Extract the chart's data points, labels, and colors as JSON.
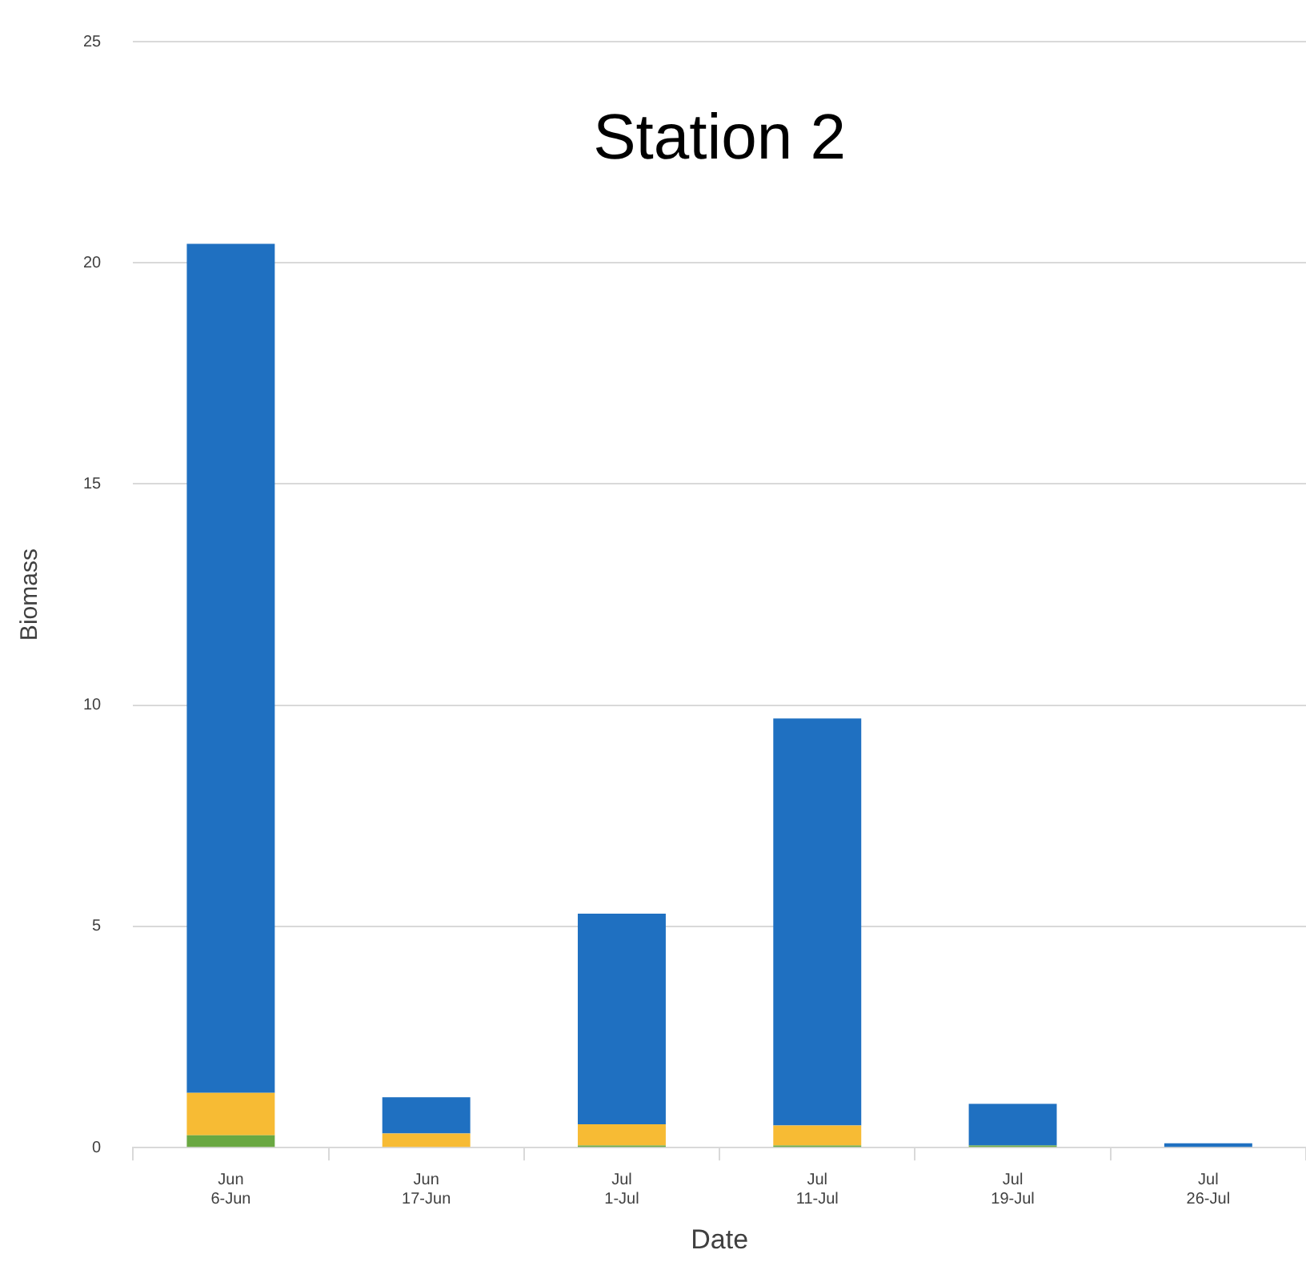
{
  "chart_data": {
    "type": "bar",
    "title": "Station 2",
    "xlabel": "Date",
    "ylabel": "Biomass",
    "categories": [
      "Jun\n6-Jun",
      "Jun\n17-Jun",
      "Jul\n1-Jul",
      "Jul\n11-Jul",
      "Jul\n19-Jul",
      "Jul\n26-Jul"
    ],
    "stacked": true,
    "series": [
      {
        "color": "#6aa842",
        "values": [
          0.28,
          0,
          0.05,
          0.05,
          0.05,
          0
        ]
      },
      {
        "color": "#f7bb34",
        "values": [
          0.96,
          0.32,
          0.48,
          0.45,
          0,
          null
        ]
      },
      {
        "color": "#1f70c1",
        "values": [
          19.19,
          0.82,
          4.76,
          9.2,
          0.94,
          0.1
        ]
      }
    ],
    "ylim": [
      0,
      25
    ],
    "yticks": [
      0,
      5,
      10,
      15,
      20,
      25
    ],
    "grid": "y",
    "legend": false
  }
}
